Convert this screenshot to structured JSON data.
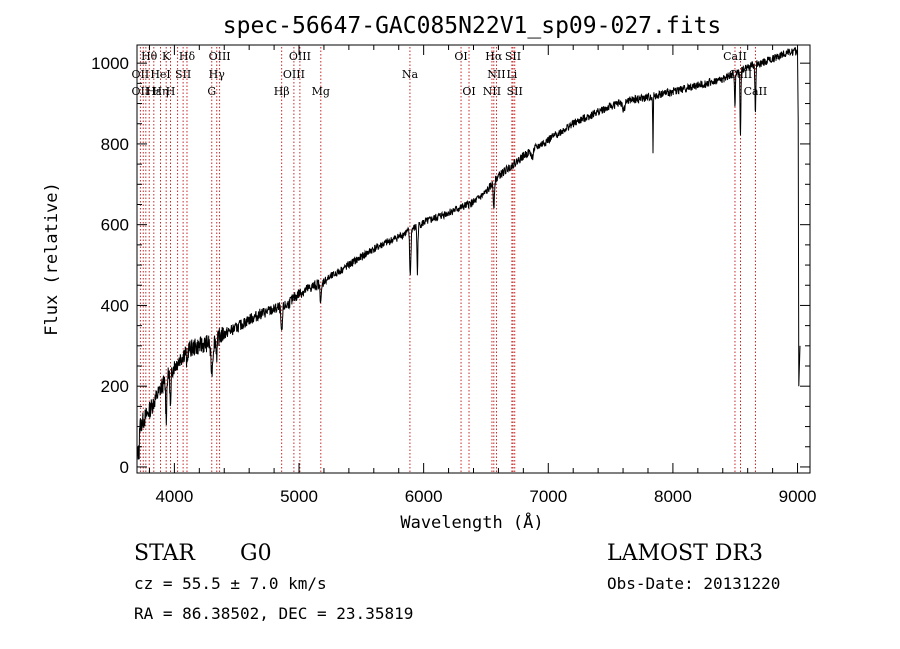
{
  "chart_data": {
    "type": "line",
    "title": "spec-56647-GAC085N22V1_sp09-027.fits",
    "xlabel": "Wavelength (Å)",
    "ylabel": "Flux (relative)",
    "xlim": [
      3700,
      9100
    ],
    "ylim": [
      -15,
      1045
    ],
    "x_ticks": [
      4000,
      5000,
      6000,
      7000,
      8000,
      9000
    ],
    "y_ticks": [
      0,
      200,
      400,
      600,
      800,
      1000
    ],
    "continuum": [
      [
        3700,
        90
      ],
      [
        3800,
        140
      ],
      [
        3900,
        200
      ],
      [
        4000,
        250
      ],
      [
        4100,
        290
      ],
      [
        4200,
        300
      ],
      [
        4300,
        310
      ],
      [
        4400,
        330
      ],
      [
        4500,
        345
      ],
      [
        4600,
        365
      ],
      [
        4700,
        380
      ],
      [
        4800,
        390
      ],
      [
        4900,
        400
      ],
      [
        5000,
        430
      ],
      [
        5200,
        460
      ],
      [
        5400,
        500
      ],
      [
        5600,
        540
      ],
      [
        5800,
        570
      ],
      [
        6000,
        605
      ],
      [
        6200,
        630
      ],
      [
        6400,
        655
      ],
      [
        6500,
        680
      ],
      [
        6600,
        720
      ],
      [
        6800,
        770
      ],
      [
        7000,
        810
      ],
      [
        7200,
        850
      ],
      [
        7400,
        880
      ],
      [
        7600,
        905
      ],
      [
        7800,
        915
      ],
      [
        8000,
        930
      ],
      [
        8200,
        945
      ],
      [
        8400,
        960
      ],
      [
        8600,
        990
      ],
      [
        8800,
        1010
      ],
      [
        8900,
        1025
      ],
      [
        9000,
        1030
      ]
    ],
    "absorption_features": [
      {
        "center": 3934,
        "depth": 100,
        "width": 6
      },
      {
        "center": 3969,
        "depth": 90,
        "width": 6
      },
      {
        "center": 4101,
        "depth": 40,
        "width": 6
      },
      {
        "center": 4300,
        "depth": 70,
        "width": 12
      },
      {
        "center": 4340,
        "depth": 40,
        "width": 6
      },
      {
        "center": 4861,
        "depth": 70,
        "width": 8
      },
      {
        "center": 5175,
        "depth": 40,
        "width": 10
      },
      {
        "center": 5890,
        "depth": 80,
        "width": 5
      },
      {
        "center": 5896,
        "depth": 70,
        "width": 5
      },
      {
        "center": 5950,
        "depth": 120,
        "width": 5
      },
      {
        "center": 6563,
        "depth": 60,
        "width": 6
      },
      {
        "center": 6870,
        "depth": 20,
        "width": 10
      },
      {
        "center": 7605,
        "depth": 20,
        "width": 15
      },
      {
        "center": 7840,
        "depth": 140,
        "width": 3
      },
      {
        "center": 8498,
        "depth": 80,
        "width": 5
      },
      {
        "center": 8542,
        "depth": 160,
        "width": 5
      },
      {
        "center": 8662,
        "depth": 120,
        "width": 5
      }
    ],
    "noise_amplitude": 10,
    "tail": [
      [
        9000,
        1030
      ],
      [
        9005,
        860
      ],
      [
        9010,
        200
      ],
      [
        9020,
        300
      ]
    ],
    "line_markers": [
      3727,
      3750,
      3771,
      3798,
      3835,
      3889,
      3934,
      3969,
      4026,
      4070,
      4101,
      4300,
      4340,
      4363,
      4861,
      4959,
      5007,
      5175,
      5890,
      6300,
      6364,
      6548,
      6563,
      6584,
      6708,
      6717,
      6731,
      8498,
      8542,
      8662
    ],
    "line_labels": [
      {
        "text": "Hθ",
        "x": 3798,
        "row": 0
      },
      {
        "text": "K",
        "x": 3934,
        "row": 0
      },
      {
        "text": "Hδ",
        "x": 4101,
        "row": 0
      },
      {
        "text": "OIII",
        "x": 4363,
        "row": 0
      },
      {
        "text": "OIII",
        "x": 5007,
        "row": 0
      },
      {
        "text": "OI",
        "x": 6300,
        "row": 0
      },
      {
        "text": "Hα",
        "x": 6563,
        "row": 0
      },
      {
        "text": "SII",
        "x": 6717,
        "row": 0
      },
      {
        "text": "CaII",
        "x": 8498,
        "row": 0
      },
      {
        "text": "OII",
        "x": 3727,
        "row": 1
      },
      {
        "text": "HeI",
        "x": 3889,
        "row": 1
      },
      {
        "text": "SII",
        "x": 4070,
        "row": 1
      },
      {
        "text": "Hγ",
        "x": 4340,
        "row": 1
      },
      {
        "text": "OIII",
        "x": 4959,
        "row": 1
      },
      {
        "text": "Na",
        "x": 5890,
        "row": 1
      },
      {
        "text": "NII",
        "x": 6584,
        "row": 1
      },
      {
        "text": "Li",
        "x": 6708,
        "row": 1
      },
      {
        "text": "CaII",
        "x": 8542,
        "row": 1
      },
      {
        "text": "OII",
        "x": 3727,
        "row": 2
      },
      {
        "text": "Hε",
        "x": 3835,
        "row": 2
      },
      {
        "text": "Hη",
        "x": 3889,
        "row": 2
      },
      {
        "text": "H",
        "x": 3969,
        "row": 2
      },
      {
        "text": "G",
        "x": 4300,
        "row": 2
      },
      {
        "text": "Hβ",
        "x": 4861,
        "row": 2
      },
      {
        "text": "Mg",
        "x": 5175,
        "row": 2
      },
      {
        "text": "OI",
        "x": 6364,
        "row": 2
      },
      {
        "text": "NII",
        "x": 6548,
        "row": 2
      },
      {
        "text": "SII",
        "x": 6731,
        "row": 2
      },
      {
        "text": "CaII",
        "x": 8662,
        "row": 2
      }
    ]
  },
  "footer": {
    "object_type": "STAR",
    "subclass": "G0",
    "survey": "LAMOST DR3",
    "redshift": "cz = 55.5 ± 7.0 km/s",
    "obs_date": "Obs-Date: 20131220",
    "coords": "RA =  86.38502, DEC =  23.35819"
  },
  "colors": {
    "axis": "#000000",
    "spectrum": "#000000",
    "line_marker": "#c01010",
    "background": "#ffffff"
  }
}
